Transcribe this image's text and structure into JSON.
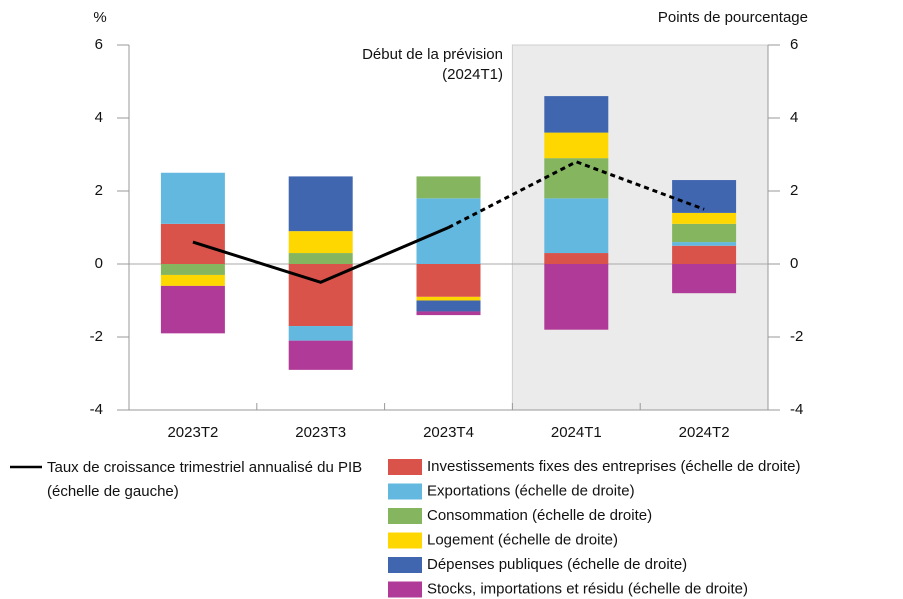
{
  "chart_data": {
    "type": "bar",
    "stacked": true,
    "y_label": "%",
    "y2_label": "Points de pourcentage",
    "annotations": [
      "Début de la prévision",
      "(2024T1)"
    ],
    "forecast_start": "2024T1",
    "categories": [
      "2023T2",
      "2023T3",
      "2023T4",
      "2024T1",
      "2024T2"
    ],
    "ylim": [
      -4,
      6
    ],
    "yticks": [
      -4,
      -2,
      0,
      2,
      4,
      6
    ],
    "y2lim": [
      -4,
      6
    ],
    "y2ticks": [
      -4,
      -2,
      0,
      2,
      4,
      6
    ],
    "line": {
      "name": "Taux de croissance trimestriel annualisé du PIB (échelle de gauche)",
      "color": "#000000",
      "values": [
        0.6,
        -0.5,
        1.0,
        2.8,
        1.5
      ]
    },
    "series": [
      {
        "name": "Investissements fixes des entreprises (échelle de droite)",
        "color": "#d9534a",
        "axis": "y2",
        "values": [
          1.1,
          -1.7,
          -0.9,
          0.3,
          0.5
        ]
      },
      {
        "name": "Exportations (échelle de droite)",
        "color": "#63b8e0",
        "axis": "y2",
        "values": [
          1.4,
          -0.4,
          1.8,
          1.5,
          0.1
        ]
      },
      {
        "name": "Consommation (échelle de droite)",
        "color": "#86b55f",
        "axis": "y2",
        "values": [
          -0.3,
          0.3,
          0.6,
          1.1,
          0.5
        ]
      },
      {
        "name": "Logement (échelle de droite)",
        "color": "#ffd700",
        "axis": "y2",
        "values": [
          -0.3,
          0.6,
          -0.1,
          0.7,
          0.3
        ]
      },
      {
        "name": "Dépenses publiques (échelle de droite)",
        "color": "#4166b0",
        "axis": "y2",
        "values": [
          0,
          1.5,
          -0.3,
          1.0,
          0.9
        ]
      },
      {
        "name": "Stocks, importations et résidu (échelle de droite)",
        "color": "#b03a97",
        "axis": "y2",
        "values": [
          -1.3,
          -0.8,
          -0.1,
          -1.8,
          -0.8
        ]
      }
    ]
  }
}
